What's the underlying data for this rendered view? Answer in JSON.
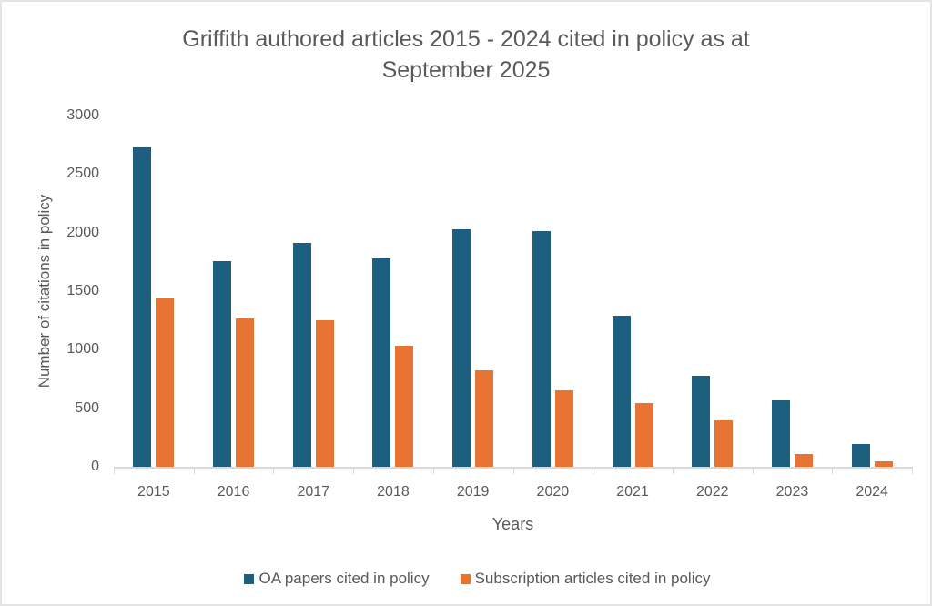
{
  "chart_data": {
    "type": "bar",
    "title": "Griffith authored articles 2015 - 2024 cited in policy as at September 2025",
    "title_lines": [
      "Griffith authored articles 2015 - 2024 cited in policy as at",
      "September 2025"
    ],
    "xlabel": "Years",
    "ylabel": "Number of citations in policy",
    "ylim": [
      0,
      3000
    ],
    "yticks": [
      0,
      500,
      1000,
      1500,
      2000,
      2500,
      3000
    ],
    "categories": [
      "2015",
      "2016",
      "2017",
      "2018",
      "2019",
      "2020",
      "2021",
      "2022",
      "2023",
      "2024"
    ],
    "series": [
      {
        "name": "OA papers cited in policy",
        "color": "#1D5F7E",
        "values": [
          2730,
          1760,
          1915,
          1780,
          2030,
          2010,
          1290,
          780,
          565,
          195
        ]
      },
      {
        "name": "Subscription articles cited in policy",
        "color": "#E87434",
        "values": [
          1440,
          1265,
          1255,
          1030,
          825,
          650,
          545,
          400,
          110,
          50
        ]
      }
    ],
    "grid": false,
    "legend_position": "bottom",
    "colors": {
      "text": "#595959",
      "axis_line": "#D9D9D9",
      "background": "#FFFFFF"
    }
  }
}
